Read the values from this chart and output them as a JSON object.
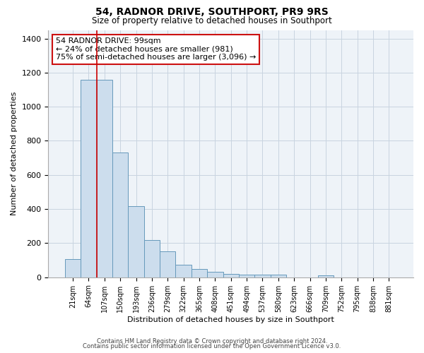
{
  "title": "54, RADNOR DRIVE, SOUTHPORT, PR9 9RS",
  "subtitle": "Size of property relative to detached houses in Southport",
  "xlabel": "Distribution of detached houses by size in Southport",
  "ylabel": "Number of detached properties",
  "bar_labels": [
    "21sqm",
    "64sqm",
    "107sqm",
    "150sqm",
    "193sqm",
    "236sqm",
    "279sqm",
    "322sqm",
    "365sqm",
    "408sqm",
    "451sqm",
    "494sqm",
    "537sqm",
    "580sqm",
    "623sqm",
    "666sqm",
    "709sqm",
    "752sqm",
    "795sqm",
    "838sqm",
    "881sqm"
  ],
  "bar_values": [
    107,
    1160,
    1160,
    730,
    415,
    220,
    150,
    75,
    50,
    30,
    20,
    15,
    15,
    15,
    0,
    0,
    10,
    0,
    0,
    0,
    0
  ],
  "bar_color": "#ccdded",
  "bar_edgecolor": "#6699bb",
  "vline_x_label": "107sqm",
  "vline_color": "#cc0000",
  "ylim": [
    0,
    1450
  ],
  "yticks": [
    0,
    200,
    400,
    600,
    800,
    1000,
    1200,
    1400
  ],
  "annotation_line1": "54 RADNOR DRIVE: 99sqm",
  "annotation_line2": "← 24% of detached houses are smaller (981)",
  "annotation_line3": "75% of semi-detached houses are larger (3,096) →",
  "footer1": "Contains HM Land Registry data © Crown copyright and database right 2024.",
  "footer2": "Contains public sector information licensed under the Open Government Licence v3.0.",
  "bg_color": "#ffffff",
  "plot_bg_color": "#eef3f8",
  "grid_color": "#c8d4e0"
}
